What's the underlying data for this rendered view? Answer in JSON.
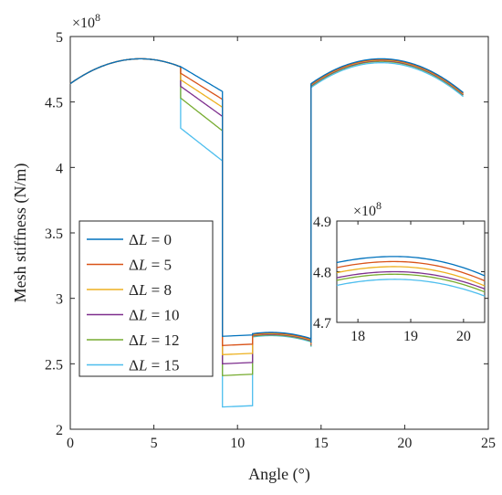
{
  "chart_data": [
    {
      "type": "line",
      "xlabel": "Angle (°)",
      "ylabel": "Mesh stiffness (N/m)",
      "y_multiplier": "×10",
      "y_exponent": "8",
      "xlim": [
        0,
        25
      ],
      "ylim": [
        2,
        5
      ],
      "x_ticks": [
        0,
        5,
        10,
        15,
        20,
        25
      ],
      "y_ticks": [
        2,
        2.5,
        3,
        3.5,
        4,
        4.5,
        5
      ],
      "y_tick_labels": [
        "2",
        "2.5",
        "3",
        "3.5",
        "4",
        "4.5",
        "5"
      ],
      "grid": false,
      "legend_position": "lower-left",
      "series": [
        {
          "name": "ΔL = 0",
          "label_prefix": "ΔL",
          "label_value": "0",
          "color": "#0072BD",
          "double_start": 4.77,
          "double_end": 4.58,
          "single2": 2.71,
          "triple_offset": 0.0
        },
        {
          "name": "ΔL = 5",
          "label_prefix": "ΔL",
          "label_value": "5",
          "color": "#D95319",
          "double_start": 4.72,
          "double_end": 4.52,
          "single2": 2.64,
          "triple_offset": -0.005
        },
        {
          "name": "ΔL = 8",
          "label_prefix": "ΔL",
          "label_value": "8",
          "color": "#EDB120",
          "double_start": 4.67,
          "double_end": 4.46,
          "single2": 2.57,
          "triple_offset": -0.01
        },
        {
          "name": "ΔL = 10",
          "label_prefix": "ΔL",
          "label_value": "10",
          "color": "#7E2F8E",
          "double_start": 4.62,
          "double_end": 4.39,
          "single2": 2.5,
          "triple_offset": -0.015
        },
        {
          "name": "ΔL = 12",
          "label_prefix": "ΔL",
          "label_value": "12",
          "color": "#77AC30",
          "double_start": 4.53,
          "double_end": 4.28,
          "single2": 2.41,
          "triple_offset": -0.02
        },
        {
          "name": "ΔL = 15",
          "label_prefix": "ΔL",
          "label_value": "15",
          "color": "#4DBEEE",
          "double_start": 4.3,
          "double_end": 4.05,
          "single2": 2.17,
          "triple_offset": -0.03
        }
      ],
      "segments": {
        "single_peak_x": 4.2,
        "single_peak_y": 4.83,
        "single_start_y": 4.64,
        "mesh_in_x": 6.6,
        "drop_x": 9.1,
        "single2_end_x": 10.9,
        "double2_start_y": 2.73,
        "double2_mid_x": 12.0,
        "double2_mid_y": 2.74,
        "rise_x": 14.4,
        "double2_end_y": 2.66,
        "triple_start_y": 4.64,
        "triple_peak_x": 18.6,
        "triple_peak_y": 4.83,
        "triple_end_x": 23.5,
        "triple_end_y": 4.58
      }
    },
    {
      "type": "line",
      "title": "inset",
      "y_multiplier": "×10",
      "y_exponent": "8",
      "xlim": [
        17.6,
        20.4
      ],
      "ylim": [
        4.7,
        4.9
      ],
      "x_ticks": [
        18,
        19,
        20
      ],
      "y_ticks": [
        4.7,
        4.8,
        4.9
      ],
      "y_tick_labels": [
        "4.7",
        "4.8",
        "4.9"
      ],
      "series_values_at_peak": [
        4.83,
        4.82,
        4.81,
        4.8,
        4.795,
        4.785
      ],
      "series_values_at_start": [
        4.818,
        4.808,
        4.798,
        4.788,
        4.783,
        4.773
      ],
      "series_values_at_end": [
        4.792,
        4.782,
        4.772,
        4.766,
        4.76,
        4.752
      ]
    }
  ]
}
